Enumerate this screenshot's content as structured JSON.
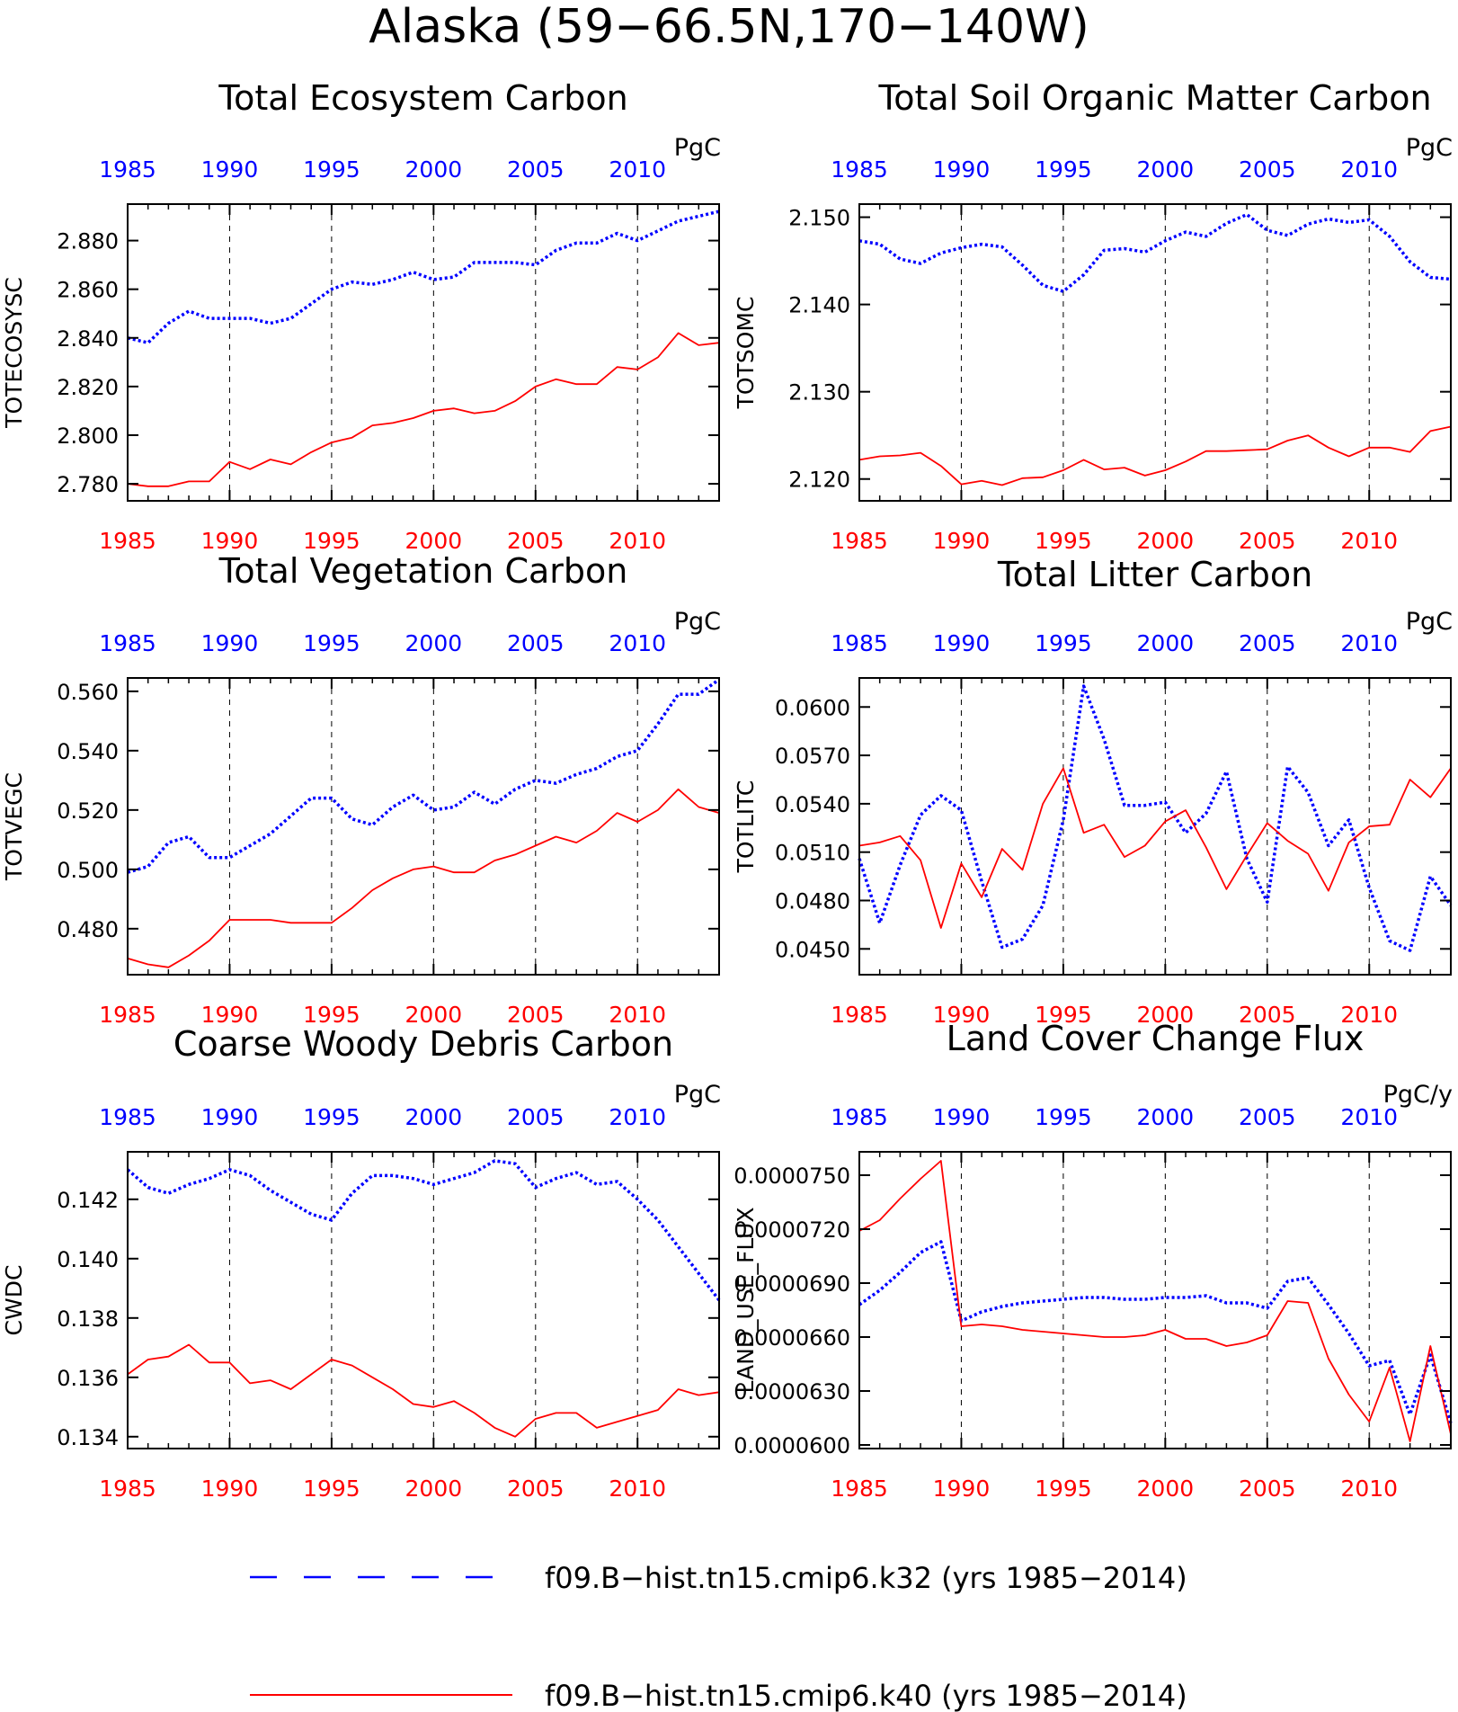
{
  "figure": {
    "title": "Alaska (59−66.5N,170−140W)",
    "colors": {
      "k32": "#0000ff",
      "k40": "#ff0000",
      "axis": "#000000",
      "grid": "#000000"
    }
  },
  "legend": {
    "placement": "bottom-center",
    "items": [
      {
        "label": "f09.B−hist.tn15.cmip6.k32 (yrs 1985−2014)",
        "color": "#0000ff",
        "style": "dashed"
      },
      {
        "label": "f09.B−hist.tn15.cmip6.k40 (yrs 1985−2014)",
        "color": "#ff0000",
        "style": "solid"
      }
    ]
  },
  "chart_data": [
    {
      "type": "line",
      "title": "Total Ecosystem Carbon",
      "ylabel": "TOTECOSYSC",
      "units": "PgC",
      "xlim": [
        1985,
        2014
      ],
      "ylim": [
        2.773,
        2.895
      ],
      "yticks": [
        2.78,
        2.8,
        2.82,
        2.84,
        2.86,
        2.88
      ],
      "ytick_labels": [
        "2.780",
        "2.800",
        "2.820",
        "2.840",
        "2.860",
        "2.880"
      ],
      "xticks": [
        1985,
        1990,
        1995,
        2000,
        2005,
        2010
      ],
      "xtick_labels": [
        "1985",
        "1990",
        "1995",
        "2000",
        "2005",
        "2010"
      ],
      "grid": "dashed vertical at 1990, 1995, 2000, 2005, 2010",
      "x": [
        1985,
        1986,
        1987,
        1988,
        1989,
        1990,
        1991,
        1992,
        1993,
        1994,
        1995,
        1996,
        1997,
        1998,
        1999,
        2000,
        2001,
        2002,
        2003,
        2004,
        2005,
        2006,
        2007,
        2008,
        2009,
        2010,
        2011,
        2012,
        2013,
        2014
      ],
      "series": [
        {
          "id": "k32",
          "style": "dashed",
          "values": [
            2.84,
            2.838,
            2.846,
            2.851,
            2.848,
            2.848,
            2.848,
            2.846,
            2.848,
            2.854,
            2.86,
            2.863,
            2.862,
            2.864,
            2.867,
            2.864,
            2.865,
            2.871,
            2.871,
            2.871,
            2.87,
            2.876,
            2.879,
            2.879,
            2.883,
            2.88,
            2.884,
            2.888,
            2.89,
            2.892
          ]
        },
        {
          "id": "k40",
          "style": "solid",
          "values": [
            2.78,
            2.779,
            2.779,
            2.781,
            2.781,
            2.789,
            2.786,
            2.79,
            2.788,
            2.793,
            2.797,
            2.799,
            2.804,
            2.805,
            2.807,
            2.81,
            2.811,
            2.809,
            2.81,
            2.814,
            2.82,
            2.823,
            2.821,
            2.821,
            2.828,
            2.827,
            2.832,
            2.842,
            2.837,
            2.838
          ]
        }
      ]
    },
    {
      "type": "line",
      "title": "Total Soil Organic Matter Carbon",
      "ylabel": "TOTSOMC",
      "units": "PgC",
      "xlim": [
        1985,
        2014
      ],
      "ylim": [
        2.1175,
        2.1515
      ],
      "yticks": [
        2.12,
        2.13,
        2.14,
        2.15
      ],
      "ytick_labels": [
        "2.120",
        "2.130",
        "2.140",
        "2.150"
      ],
      "xticks": [
        1985,
        1990,
        1995,
        2000,
        2005,
        2010
      ],
      "xtick_labels": [
        "1985",
        "1990",
        "1995",
        "2000",
        "2005",
        "2010"
      ],
      "grid": "dashed vertical at 1990, 1995, 2000, 2005, 2010",
      "x": [
        1985,
        1986,
        1987,
        1988,
        1989,
        1990,
        1991,
        1992,
        1993,
        1994,
        1995,
        1996,
        1997,
        1998,
        1999,
        2000,
        2001,
        2002,
        2003,
        2004,
        2005,
        2006,
        2007,
        2008,
        2009,
        2010,
        2011,
        2012,
        2013,
        2014
      ],
      "series": [
        {
          "id": "k32",
          "style": "dashed",
          "values": [
            2.1473,
            2.1469,
            2.1452,
            2.1447,
            2.1459,
            2.1465,
            2.1469,
            2.1466,
            2.1445,
            2.1422,
            2.1415,
            2.1434,
            2.1462,
            2.1464,
            2.146,
            2.1473,
            2.1483,
            2.1478,
            2.1493,
            2.1503,
            2.1485,
            2.1479,
            2.1492,
            2.1498,
            2.1494,
            2.1497,
            2.1478,
            2.1449,
            2.1431,
            2.1429
          ]
        },
        {
          "id": "k40",
          "style": "solid",
          "values": [
            2.1222,
            2.1226,
            2.1227,
            2.123,
            2.1215,
            2.1194,
            2.1198,
            2.1193,
            2.1201,
            2.1202,
            2.121,
            2.1222,
            2.1211,
            2.1213,
            2.1204,
            2.121,
            2.122,
            2.1232,
            2.1232,
            2.1233,
            2.1234,
            2.1244,
            2.125,
            2.1236,
            2.1226,
            2.1236,
            2.1236,
            2.1231,
            2.1255,
            2.126
          ]
        }
      ]
    },
    {
      "type": "line",
      "title": "Total Vegetation Carbon",
      "ylabel": "TOTVEGC",
      "units": "PgC",
      "xlim": [
        1985,
        2014
      ],
      "ylim": [
        0.4645,
        0.5645
      ],
      "yticks": [
        0.48,
        0.5,
        0.52,
        0.54,
        0.56
      ],
      "ytick_labels": [
        "0.480",
        "0.500",
        "0.520",
        "0.540",
        "0.560"
      ],
      "xticks": [
        1985,
        1990,
        1995,
        2000,
        2005,
        2010
      ],
      "xtick_labels": [
        "1985",
        "1990",
        "1995",
        "2000",
        "2005",
        "2010"
      ],
      "grid": "dashed vertical at 1990, 1995, 2000, 2005, 2010",
      "x": [
        1985,
        1986,
        1987,
        1988,
        1989,
        1990,
        1991,
        1992,
        1993,
        1994,
        1995,
        1996,
        1997,
        1998,
        1999,
        2000,
        2001,
        2002,
        2003,
        2004,
        2005,
        2006,
        2007,
        2008,
        2009,
        2010,
        2011,
        2012,
        2013,
        2014
      ],
      "series": [
        {
          "id": "k32",
          "style": "dashed",
          "values": [
            0.499,
            0.501,
            0.509,
            0.511,
            0.504,
            0.504,
            0.508,
            0.512,
            0.518,
            0.524,
            0.524,
            0.517,
            0.515,
            0.521,
            0.525,
            0.52,
            0.521,
            0.526,
            0.522,
            0.527,
            0.53,
            0.529,
            0.532,
            0.534,
            0.538,
            0.54,
            0.549,
            0.559,
            0.559,
            0.564
          ]
        },
        {
          "id": "k40",
          "style": "solid",
          "values": [
            0.47,
            0.468,
            0.467,
            0.471,
            0.476,
            0.483,
            0.483,
            0.483,
            0.482,
            0.482,
            0.482,
            0.487,
            0.493,
            0.497,
            0.5,
            0.501,
            0.499,
            0.499,
            0.503,
            0.505,
            0.508,
            0.511,
            0.509,
            0.513,
            0.519,
            0.516,
            0.52,
            0.527,
            0.521,
            0.519
          ]
        }
      ]
    },
    {
      "type": "line",
      "title": "Total Litter Carbon",
      "ylabel": "TOTLITC",
      "units": "PgC",
      "xlim": [
        1985,
        2014
      ],
      "ylim": [
        0.0434,
        0.0618
      ],
      "yticks": [
        0.045,
        0.048,
        0.051,
        0.054,
        0.057,
        0.06
      ],
      "ytick_labels": [
        "0.0450",
        "0.0480",
        "0.0510",
        "0.0540",
        "0.0570",
        "0.0600"
      ],
      "xticks": [
        1985,
        1990,
        1995,
        2000,
        2005,
        2010
      ],
      "xtick_labels": [
        "1985",
        "1990",
        "1995",
        "2000",
        "2005",
        "2010"
      ],
      "grid": "dashed vertical at 1990, 1995, 2000, 2005, 2010",
      "x": [
        1985,
        1986,
        1987,
        1988,
        1989,
        1990,
        1991,
        1992,
        1993,
        1994,
        1995,
        1996,
        1997,
        1998,
        1999,
        2000,
        2001,
        2002,
        2003,
        2004,
        2005,
        2006,
        2007,
        2008,
        2009,
        2010,
        2011,
        2012,
        2013,
        2014
      ],
      "series": [
        {
          "id": "k32",
          "style": "dashed",
          "values": [
            0.0506,
            0.0466,
            0.0502,
            0.0533,
            0.0545,
            0.0536,
            0.0492,
            0.0451,
            0.0456,
            0.0477,
            0.053,
            0.0613,
            0.058,
            0.0539,
            0.0539,
            0.0541,
            0.0522,
            0.0534,
            0.056,
            0.0506,
            0.0479,
            0.0563,
            0.0547,
            0.0514,
            0.053,
            0.0488,
            0.0455,
            0.0449,
            0.0495,
            0.0477
          ]
        },
        {
          "id": "k40",
          "style": "solid",
          "values": [
            0.0514,
            0.0516,
            0.052,
            0.0505,
            0.0463,
            0.0503,
            0.0482,
            0.0512,
            0.0499,
            0.054,
            0.0562,
            0.0522,
            0.0527,
            0.0507,
            0.0514,
            0.0529,
            0.0536,
            0.0513,
            0.0487,
            0.0508,
            0.0528,
            0.0517,
            0.0509,
            0.0486,
            0.0516,
            0.0526,
            0.0527,
            0.0555,
            0.0544,
            0.0562
          ]
        }
      ]
    },
    {
      "type": "line",
      "title": "Coarse Woody Debris Carbon",
      "ylabel": "CWDC",
      "units": "PgC",
      "xlim": [
        1985,
        2014
      ],
      "ylim": [
        0.1336,
        0.1436
      ],
      "yticks": [
        0.134,
        0.136,
        0.138,
        0.14,
        0.142
      ],
      "ytick_labels": [
        "0.134",
        "0.136",
        "0.138",
        "0.140",
        "0.142"
      ],
      "xticks": [
        1985,
        1990,
        1995,
        2000,
        2005,
        2010
      ],
      "xtick_labels": [
        "1985",
        "1990",
        "1995",
        "2000",
        "2005",
        "2010"
      ],
      "grid": "dashed vertical at 1990, 1995, 2000, 2005, 2010",
      "x": [
        1985,
        1986,
        1987,
        1988,
        1989,
        1990,
        1991,
        1992,
        1993,
        1994,
        1995,
        1996,
        1997,
        1998,
        1999,
        2000,
        2001,
        2002,
        2003,
        2004,
        2005,
        2006,
        2007,
        2008,
        2009,
        2010,
        2011,
        2012,
        2013,
        2014
      ],
      "series": [
        {
          "id": "k32",
          "style": "dashed",
          "values": [
            0.143,
            0.1424,
            0.1422,
            0.1425,
            0.1427,
            0.143,
            0.1428,
            0.1423,
            0.1419,
            0.1415,
            0.1413,
            0.1422,
            0.1428,
            0.1428,
            0.1427,
            0.1425,
            0.1427,
            0.1429,
            0.1433,
            0.1432,
            0.1424,
            0.1427,
            0.1429,
            0.1425,
            0.1426,
            0.142,
            0.1413,
            0.1404,
            0.1395,
            0.1386
          ]
        },
        {
          "id": "k40",
          "style": "solid",
          "values": [
            0.1361,
            0.1366,
            0.1367,
            0.1371,
            0.1365,
            0.1365,
            0.1358,
            0.1359,
            0.1356,
            0.1361,
            0.1366,
            0.1364,
            0.136,
            0.1356,
            0.1351,
            0.135,
            0.1352,
            0.1348,
            0.1343,
            0.134,
            0.1346,
            0.1348,
            0.1348,
            0.1343,
            0.1345,
            0.1347,
            0.1349,
            0.1356,
            0.1354,
            0.1355
          ]
        }
      ]
    },
    {
      "type": "line",
      "title": "Land Cover Change Flux",
      "ylabel": "LAND_USE_FLUX",
      "units": "PgC/y",
      "xlim": [
        1985,
        2014
      ],
      "ylim": [
        5.98e-05,
        7.63e-05
      ],
      "yticks": [
        6e-05,
        6.3e-05,
        6.6e-05,
        6.9e-05,
        7.2e-05,
        7.5e-05
      ],
      "ytick_labels": [
        "0.0000600",
        "0.0000630",
        "0.0000660",
        "0.0000690",
        "0.0000720",
        "0.0000750"
      ],
      "xticks": [
        1985,
        1990,
        1995,
        2000,
        2005,
        2010
      ],
      "xtick_labels": [
        "1985",
        "1990",
        "1995",
        "2000",
        "2005",
        "2010"
      ],
      "grid": "dashed vertical at 1990, 1995, 2000, 2005, 2010",
      "x": [
        1985,
        1986,
        1987,
        1988,
        1989,
        1990,
        1991,
        1992,
        1993,
        1994,
        1995,
        1996,
        1997,
        1998,
        1999,
        2000,
        2001,
        2002,
        2003,
        2004,
        2005,
        2006,
        2007,
        2008,
        2009,
        2010,
        2011,
        2012,
        2013,
        2014
      ],
      "series": [
        {
          "id": "k32",
          "style": "dashed",
          "values": [
            6.78e-05,
            6.86e-05,
            6.96e-05,
            7.07e-05,
            7.13e-05,
            6.69e-05,
            6.74e-05,
            6.77e-05,
            6.79e-05,
            6.8e-05,
            6.81e-05,
            6.82e-05,
            6.82e-05,
            6.81e-05,
            6.81e-05,
            6.82e-05,
            6.82e-05,
            6.83e-05,
            6.79e-05,
            6.79e-05,
            6.76e-05,
            6.91e-05,
            6.93e-05,
            6.78e-05,
            6.62e-05,
            6.44e-05,
            6.47e-05,
            6.17e-05,
            6.5e-05,
            6.12e-05
          ]
        },
        {
          "id": "k40",
          "style": "solid",
          "values": [
            7.19e-05,
            7.25e-05,
            7.37e-05,
            7.48e-05,
            7.58e-05,
            6.66e-05,
            6.67e-05,
            6.66e-05,
            6.64e-05,
            6.63e-05,
            6.62e-05,
            6.61e-05,
            6.6e-05,
            6.6e-05,
            6.61e-05,
            6.64e-05,
            6.59e-05,
            6.59e-05,
            6.55e-05,
            6.57e-05,
            6.61e-05,
            6.8e-05,
            6.79e-05,
            6.48e-05,
            6.28e-05,
            6.13e-05,
            6.43e-05,
            6.02e-05,
            6.55e-05,
            6.06e-05
          ]
        }
      ]
    }
  ]
}
